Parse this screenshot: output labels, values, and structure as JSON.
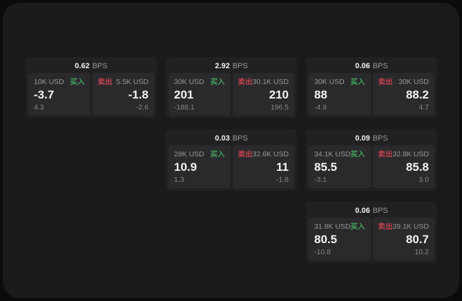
{
  "labels": {
    "buy": "买入",
    "sell": "卖出",
    "bps_suffix": "BPS"
  },
  "colors": {
    "buy_green": "#43a25e",
    "sell_red": "#c2414e",
    "panel_bg": "#1a1a1b",
    "card_bg": "#212123",
    "tile_bg": "#2a2a2d",
    "value_white": "#f4f4f5",
    "muted_gray": "#97979b"
  },
  "cards": [
    {
      "bps": "0.62",
      "grid": {
        "col": 1,
        "row": 1
      },
      "buy": {
        "amount": "10K USD",
        "value": "-3.7",
        "delta": "4.3"
      },
      "sell": {
        "amount": "5.5K USD",
        "value": "-1.8",
        "delta": "-2.6"
      }
    },
    {
      "bps": "2.92",
      "grid": {
        "col": 2,
        "row": 1
      },
      "buy": {
        "amount": "30K USD",
        "value": "201",
        "delta": "-188.1"
      },
      "sell": {
        "amount": "30.1K USD",
        "value": "210",
        "delta": "196.5"
      }
    },
    {
      "bps": "0.06",
      "grid": {
        "col": 3,
        "row": 1
      },
      "buy": {
        "amount": "30K USD",
        "value": "88",
        "delta": "-4.9"
      },
      "sell": {
        "amount": "30K USD",
        "value": "88.2",
        "delta": "4.7"
      }
    },
    {
      "bps": "0.03",
      "grid": {
        "col": 2,
        "row": 2
      },
      "buy": {
        "amount": "28K USD",
        "value": "10.9",
        "delta": "1.3"
      },
      "sell": {
        "amount": "32.6K USD",
        "value": "11",
        "delta": "-1.8"
      }
    },
    {
      "bps": "0.09",
      "grid": {
        "col": 3,
        "row": 2
      },
      "buy": {
        "amount": "34.1K USD",
        "value": "85.5",
        "delta": "-3.1"
      },
      "sell": {
        "amount": "32.8K USD",
        "value": "85.8",
        "delta": "3.0"
      }
    },
    {
      "bps": "0.06",
      "grid": {
        "col": 3,
        "row": 3
      },
      "buy": {
        "amount": "31.8K USD",
        "value": "80.5",
        "delta": "-10.8"
      },
      "sell": {
        "amount": "39.1K USD",
        "value": "80.7",
        "delta": "10.2"
      }
    }
  ]
}
